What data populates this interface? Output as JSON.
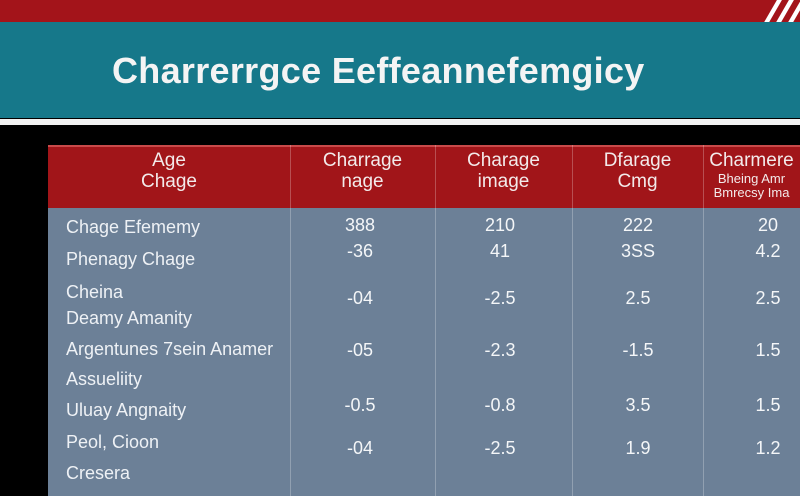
{
  "header": {
    "title": "Charrerrgce Eeffeannefemgicy"
  },
  "table": {
    "headers": [
      [
        "Age",
        "Chage"
      ],
      [
        "Charrage",
        "nage"
      ],
      [
        "Charage",
        "image"
      ],
      [
        "Dfarage",
        "Cmg"
      ],
      [
        "Charmere",
        "Bheing Amr",
        "Bmrecsy Ima"
      ]
    ],
    "rows": [
      {
        "label": [
          "Chage Efememy"
        ],
        "cells": [
          "388",
          "210",
          "222",
          "20"
        ]
      },
      {
        "label": [
          "Phenagy Chage"
        ],
        "cells": [
          "-36",
          "41",
          "3SS",
          "4.2"
        ]
      },
      {
        "label": [
          "Cheina",
          "Deamy Amanity"
        ],
        "cells": [
          "-04",
          "-2.5",
          "2.5",
          "2.5"
        ]
      },
      {
        "label": [
          "Argentunes 7sein Anamer"
        ],
        "cells": [
          "-05",
          "-2.3",
          "-1.5",
          "1.5"
        ]
      },
      {
        "label": [
          "Assueliity"
        ]
      },
      {
        "label": [
          "Uluay Angnaity"
        ],
        "cells": [
          "-0.5",
          "-0.8",
          "3.5",
          "1.5"
        ]
      },
      {
        "label": [
          "Peol, Cioon"
        ],
        "cells": [
          "-04",
          "-2.5",
          "1.9",
          "1.2"
        ]
      },
      {
        "label": [
          "Cresera"
        ]
      }
    ]
  }
}
